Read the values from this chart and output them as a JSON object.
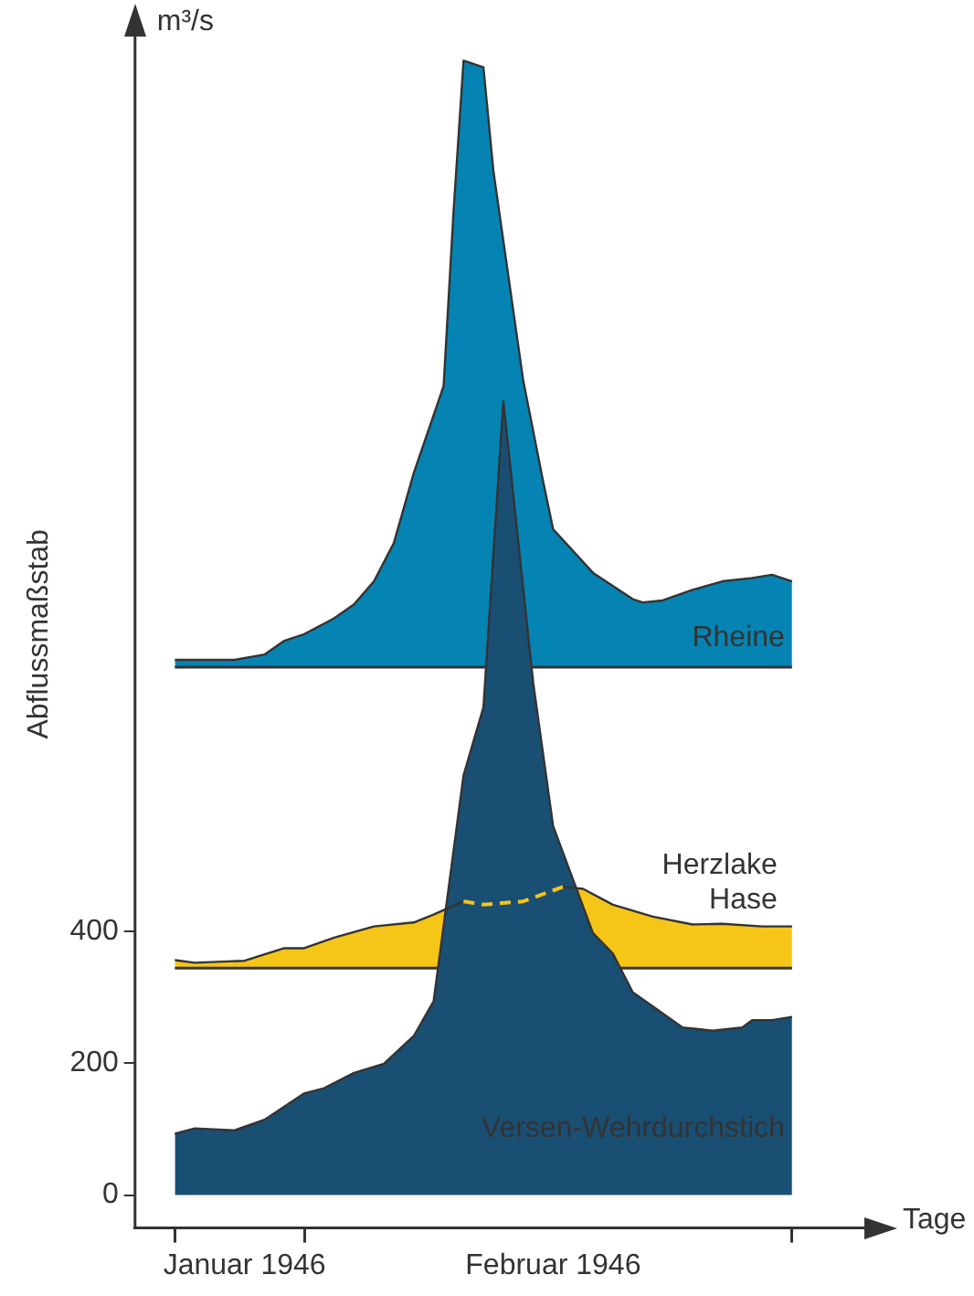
{
  "chart_data": {
    "type": "area",
    "xlabel": "Tage",
    "ylabel": "Abflussmaßstab",
    "annotations": [
      "m³/s"
    ],
    "xlim": [
      "1945-12-28",
      "1946-03-12"
    ],
    "xticks": [
      {
        "value": "1946-01-01",
        "label": null
      },
      {
        "value": "1946-01-08",
        "label": "Januar 1946"
      },
      {
        "value": "1946-01-14",
        "label": null
      },
      {
        "value": "1946-02-08",
        "label": "Februar 1946"
      },
      {
        "value": "1946-03-04",
        "label": null
      }
    ],
    "ylim": [
      -50,
      1750
    ],
    "yticks": [
      0,
      200,
      400
    ],
    "ref_lines": [
      {
        "axis": "y",
        "value": 800,
        "color": "#333333"
      },
      {
        "axis": "y",
        "value": 344,
        "color": "#333333"
      }
    ],
    "series": [
      {
        "name": "Rheine",
        "color": "#0584b3",
        "x": [
          "1946-01-01",
          "1946-01-04",
          "1946-01-07",
          "1946-01-10",
          "1946-01-12",
          "1946-01-14",
          "1946-01-16",
          "1946-01-17",
          "1946-01-19",
          "1946-01-21",
          "1946-01-23",
          "1946-01-25",
          "1946-01-28",
          "1946-01-29",
          "1946-01-30",
          "1946-02-01",
          "1946-02-02",
          "1946-02-05",
          "1946-02-07",
          "1946-02-08",
          "1946-02-12",
          "1946-02-16",
          "1946-02-17",
          "1946-02-19",
          "1946-02-22",
          "1946-02-25",
          "1946-02-28",
          "1946-03-02",
          "1946-03-04"
        ],
        "values": [
          811,
          811,
          811,
          819,
          840,
          850,
          866,
          874,
          895,
          930,
          988,
          1094,
          1226,
          1491,
          1719,
          1709,
          1552,
          1234,
          1081,
          1009,
          943,
          903,
          898,
          901,
          917,
          930,
          935,
          940,
          930
        ]
      },
      {
        "name": "Herzlake Hase",
        "color": "#f5c518",
        "x": [
          "1946-01-01",
          "1946-01-03",
          "1946-01-08",
          "1946-01-12",
          "1946-01-14",
          "1946-01-17",
          "1946-01-21",
          "1946-01-25",
          "1946-01-27",
          "1946-01-30",
          "1946-02-01",
          "1946-02-05",
          "1946-02-09",
          "1946-02-11",
          "1946-02-14",
          "1946-02-18",
          "1946-02-22",
          "1946-02-25",
          "1946-03-01",
          "1946-03-04"
        ],
        "values": [
          356,
          352,
          355,
          374,
          374,
          390,
          407,
          413,
          425,
          445,
          440,
          445,
          467,
          464,
          440,
          422,
          410,
          411,
          407,
          407
        ]
      },
      {
        "name": "Versen-Wehrdurchstich",
        "color": "#1a4f74",
        "x": [
          "1946-01-01",
          "1946-01-03",
          "1946-01-07",
          "1946-01-10",
          "1946-01-14",
          "1946-01-16",
          "1946-01-19",
          "1946-01-22",
          "1946-01-25",
          "1946-01-27",
          "1946-01-30",
          "1946-02-01",
          "1946-02-03",
          "1946-02-06",
          "1946-02-08",
          "1946-02-12",
          "1946-02-14",
          "1946-02-16",
          "1946-02-18",
          "1946-02-21",
          "1946-02-24",
          "1946-02-27",
          "1946-02-28",
          "1946-03-02",
          "1946-03-04"
        ],
        "values": [
          93,
          101,
          98,
          114,
          154,
          162,
          185,
          199,
          241,
          294,
          636,
          739,
          1203,
          776,
          559,
          397,
          366,
          307,
          286,
          254,
          249,
          254,
          265,
          265,
          270
        ]
      }
    ]
  }
}
